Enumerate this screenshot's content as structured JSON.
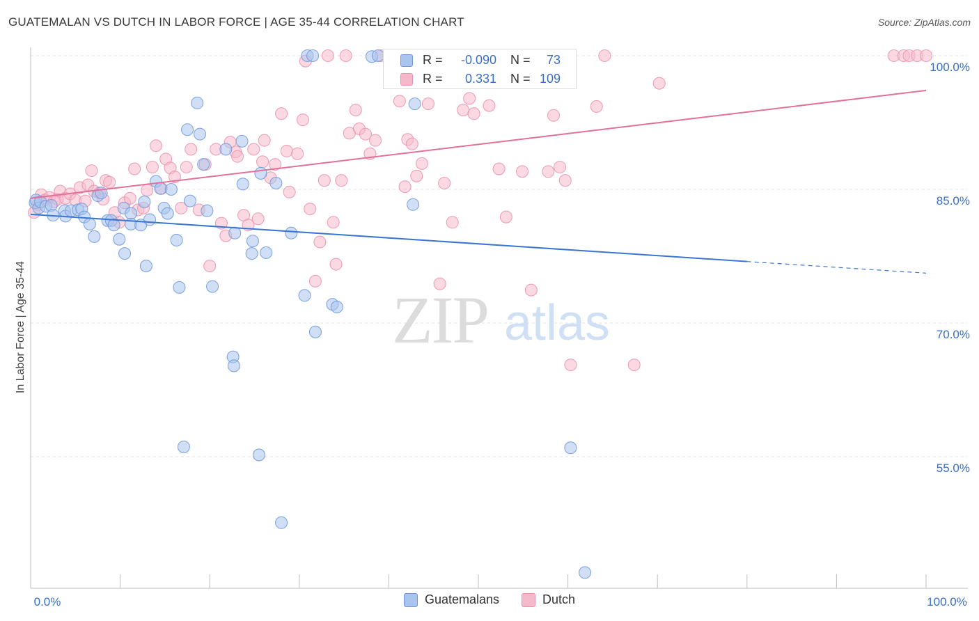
{
  "title": "GUATEMALAN VS DUTCH IN LABOR FORCE | AGE 35-44 CORRELATION CHART",
  "source": "Source: ZipAtlas.com",
  "watermark": {
    "zip": "ZIP",
    "atlas": "atlas"
  },
  "legend_box": {
    "rows": [
      {
        "r_label": "R =",
        "r_value": "-0.090",
        "n_label": "N =",
        "n_value": "73"
      },
      {
        "r_label": "R =",
        "r_value": "0.331",
        "n_label": "N =",
        "n_value": "109"
      }
    ]
  },
  "legend_bottom": [
    "Guatemalans",
    "Dutch"
  ],
  "colors": {
    "guatemalans_fill": "#a9c4ee",
    "guatemalans_stroke": "#6f99dc",
    "guatemalans_line": "#3a76d0",
    "dutch_fill": "#f6b9cb",
    "dutch_stroke": "#ea93ae",
    "dutch_line": "#e2709a",
    "tick_label": "#3a6fc4",
    "grid": "#e2e2e2"
  },
  "chart_data": {
    "type": "scatter",
    "title": "GUATEMALAN VS DUTCH IN LABOR FORCE | AGE 35-44 CORRELATION CHART",
    "xlabel": "",
    "ylabel": "In Labor Force | Age 35-44",
    "xlim": [
      0,
      100
    ],
    "ylim": [
      37,
      102
    ],
    "x_tick_labels": [
      "0.0%",
      "100.0%"
    ],
    "y_ticks": [
      {
        "value": 100,
        "label": "100.0%"
      },
      {
        "value": 85,
        "label": "85.0%"
      },
      {
        "value": 70,
        "label": "70.0%"
      },
      {
        "value": 55,
        "label": "55.0%"
      }
    ],
    "grid": true,
    "series": [
      {
        "name": "Guatemalans",
        "r": -0.09,
        "n": 73,
        "trend": {
          "x0": 0,
          "y0": 82.2,
          "x1": 80,
          "y1": 76.9,
          "dash_to_x": 100,
          "dash_to_y": 75.6
        },
        "points": [
          [
            0.5,
            83.5
          ],
          [
            0.6,
            83.8
          ],
          [
            0.9,
            82.9
          ],
          [
            1.1,
            83.6
          ],
          [
            1.7,
            83.1
          ],
          [
            2.3,
            83.2
          ],
          [
            2.5,
            82.1
          ],
          [
            3.8,
            82.6
          ],
          [
            3.9,
            82.0
          ],
          [
            4.5,
            82.6
          ],
          [
            5.3,
            82.7
          ],
          [
            5.7,
            82.8
          ],
          [
            6.0,
            81.9
          ],
          [
            6.6,
            81.1
          ],
          [
            7.1,
            79.7
          ],
          [
            7.5,
            84.3
          ],
          [
            7.9,
            84.6
          ],
          [
            8.6,
            81.5
          ],
          [
            9.0,
            81.5
          ],
          [
            9.3,
            81.0
          ],
          [
            9.9,
            79.4
          ],
          [
            10.4,
            82.9
          ],
          [
            10.5,
            77.8
          ],
          [
            11.2,
            82.3
          ],
          [
            11.2,
            81.1
          ],
          [
            12.3,
            81.0
          ],
          [
            12.7,
            83.6
          ],
          [
            12.9,
            76.4
          ],
          [
            13.3,
            81.6
          ],
          [
            14.0,
            85.9
          ],
          [
            14.5,
            85.1
          ],
          [
            14.9,
            82.9
          ],
          [
            15.3,
            82.3
          ],
          [
            15.7,
            85.0
          ],
          [
            16.3,
            79.3
          ],
          [
            16.6,
            74.0
          ],
          [
            17.1,
            56.1
          ],
          [
            17.5,
            91.7
          ],
          [
            17.8,
            83.7
          ],
          [
            18.6,
            94.7
          ],
          [
            18.9,
            91.2
          ],
          [
            19.3,
            87.8
          ],
          [
            19.7,
            82.6
          ],
          [
            20.3,
            74.1
          ],
          [
            21.8,
            89.5
          ],
          [
            22.6,
            66.2
          ],
          [
            22.7,
            65.2
          ],
          [
            22.8,
            80.1
          ],
          [
            23.6,
            90.4
          ],
          [
            23.7,
            85.6
          ],
          [
            24.8,
            79.2
          ],
          [
            24.7,
            77.8
          ],
          [
            25.5,
            55.2
          ],
          [
            25.7,
            86.8
          ],
          [
            26.3,
            77.9
          ],
          [
            27.4,
            85.7
          ],
          [
            28.0,
            47.6
          ],
          [
            29.1,
            80.1
          ],
          [
            30.6,
            73.1
          ],
          [
            30.9,
            100.0
          ],
          [
            31.5,
            100.0
          ],
          [
            31.8,
            69.0
          ],
          [
            33.7,
            72.1
          ],
          [
            34.2,
            71.8
          ],
          [
            38.1,
            99.9
          ],
          [
            38.8,
            100.0
          ],
          [
            42.7,
            83.3
          ],
          [
            42.9,
            94.6
          ],
          [
            46.1,
            100.0
          ],
          [
            49.2,
            100.0
          ],
          [
            56.1,
            100.0
          ],
          [
            60.3,
            56.0
          ],
          [
            61.9,
            42.0
          ]
        ]
      },
      {
        "name": "Dutch",
        "r": 0.331,
        "n": 109,
        "trend": {
          "x0": 0,
          "y0": 84.0,
          "x1": 100,
          "y1": 96.1
        },
        "points": [
          [
            0.4,
            82.4
          ],
          [
            0.8,
            83.3
          ],
          [
            1.2,
            84.4
          ],
          [
            1.6,
            83.8
          ],
          [
            2.1,
            84.1
          ],
          [
            2.6,
            83.6
          ],
          [
            3.0,
            83.9
          ],
          [
            3.3,
            84.8
          ],
          [
            3.9,
            84.0
          ],
          [
            4.4,
            84.5
          ],
          [
            5.0,
            83.8
          ],
          [
            5.5,
            85.2
          ],
          [
            6.1,
            83.7
          ],
          [
            6.4,
            85.5
          ],
          [
            6.8,
            87.1
          ],
          [
            7.1,
            84.8
          ],
          [
            7.7,
            84.6
          ],
          [
            8.1,
            83.9
          ],
          [
            8.4,
            86.0
          ],
          [
            8.8,
            85.8
          ],
          [
            9.4,
            82.4
          ],
          [
            9.9,
            81.3
          ],
          [
            10.5,
            83.5
          ],
          [
            11.1,
            84.0
          ],
          [
            11.6,
            87.3
          ],
          [
            12.0,
            82.7
          ],
          [
            12.6,
            82.9
          ],
          [
            13.0,
            84.9
          ],
          [
            13.6,
            87.5
          ],
          [
            14.0,
            89.9
          ],
          [
            14.6,
            85.1
          ],
          [
            15.1,
            88.4
          ],
          [
            15.6,
            87.4
          ],
          [
            16.1,
            86.4
          ],
          [
            16.8,
            82.9
          ],
          [
            17.4,
            87.5
          ],
          [
            17.9,
            89.5
          ],
          [
            18.8,
            82.7
          ],
          [
            19.5,
            87.8
          ],
          [
            20.0,
            76.4
          ],
          [
            20.7,
            89.5
          ],
          [
            21.3,
            81.2
          ],
          [
            21.8,
            79.8
          ],
          [
            22.3,
            90.3
          ],
          [
            22.9,
            89.2
          ],
          [
            23.1,
            88.7
          ],
          [
            23.8,
            82.1
          ],
          [
            24.3,
            81.0
          ],
          [
            24.9,
            89.5
          ],
          [
            25.4,
            81.7
          ],
          [
            25.9,
            88.1
          ],
          [
            26.1,
            90.5
          ],
          [
            26.8,
            86.3
          ],
          [
            27.3,
            87.8
          ],
          [
            28.0,
            93.5
          ],
          [
            28.6,
            89.3
          ],
          [
            28.9,
            84.7
          ],
          [
            29.8,
            89.0
          ],
          [
            30.4,
            92.8
          ],
          [
            30.7,
            99.4
          ],
          [
            31.2,
            82.8
          ],
          [
            31.8,
            74.7
          ],
          [
            32.3,
            79.1
          ],
          [
            32.8,
            86.0
          ],
          [
            33.2,
            100.0
          ],
          [
            33.8,
            81.3
          ],
          [
            34.1,
            76.6
          ],
          [
            34.7,
            86.0
          ],
          [
            35.2,
            100.0
          ],
          [
            35.6,
            91.3
          ],
          [
            36.3,
            93.9
          ],
          [
            36.7,
            91.8
          ],
          [
            37.4,
            91.2
          ],
          [
            37.9,
            89.0
          ],
          [
            38.5,
            90.5
          ],
          [
            39.1,
            100.0
          ],
          [
            40.0,
            100.0
          ],
          [
            41.2,
            94.9
          ],
          [
            41.8,
            85.3
          ],
          [
            42.1,
            90.6
          ],
          [
            42.6,
            90.1
          ],
          [
            43.1,
            86.5
          ],
          [
            43.7,
            87.9
          ],
          [
            44.4,
            94.6
          ],
          [
            45.7,
            74.4
          ],
          [
            46.2,
            85.7
          ],
          [
            47.1,
            81.3
          ],
          [
            48.3,
            93.9
          ],
          [
            49.0,
            95.2
          ],
          [
            49.5,
            93.5
          ],
          [
            51.2,
            94.4
          ],
          [
            52.3,
            87.3
          ],
          [
            53.1,
            81.9
          ],
          [
            54.9,
            87.0
          ],
          [
            55.9,
            73.7
          ],
          [
            57.8,
            87.0
          ],
          [
            58.4,
            93.3
          ],
          [
            59.1,
            87.5
          ],
          [
            59.7,
            86.0
          ],
          [
            60.3,
            65.3
          ],
          [
            63.2,
            94.3
          ],
          [
            64.1,
            100.0
          ],
          [
            67.4,
            65.3
          ],
          [
            70.2,
            96.9
          ],
          [
            96.4,
            100.0
          ],
          [
            97.5,
            100.0
          ],
          [
            98.1,
            100.0
          ],
          [
            99.0,
            100.0
          ],
          [
            100.0,
            100.0
          ]
        ]
      }
    ]
  }
}
